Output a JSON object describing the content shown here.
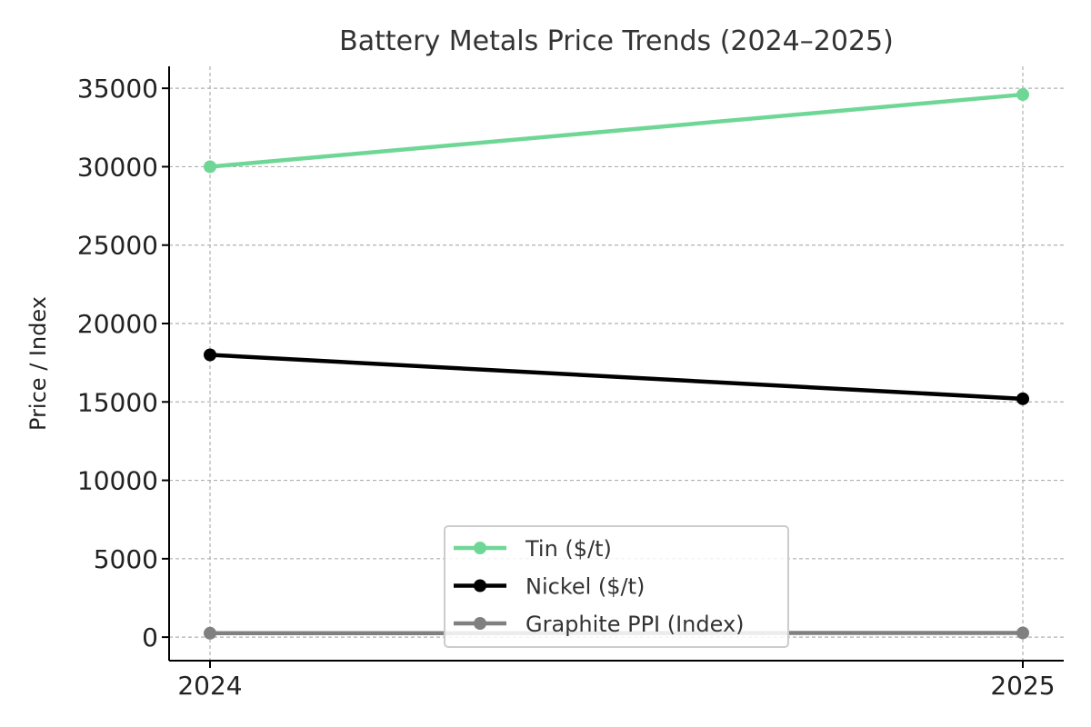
{
  "chart_data": {
    "type": "line",
    "title": "Battery Metals Price Trends (2024–2025)",
    "xlabel": "",
    "ylabel": "Price / Index",
    "categories": [
      "2024",
      "2025"
    ],
    "ylim": [
      -1500,
      36400
    ],
    "yticks": [
      0,
      5000,
      10000,
      15000,
      20000,
      25000,
      30000,
      35000
    ],
    "grid": true,
    "legend_position": "bottom-center",
    "series": [
      {
        "name": "Tin ($/t)",
        "values": [
          30000,
          34600
        ],
        "color": "#6fd796"
      },
      {
        "name": "Nickel ($/t)",
        "values": [
          18000,
          15200
        ],
        "color": "#000000"
      },
      {
        "name": "Graphite PPI (Index)",
        "values": [
          250,
          270
        ],
        "color": "#808080"
      }
    ]
  }
}
